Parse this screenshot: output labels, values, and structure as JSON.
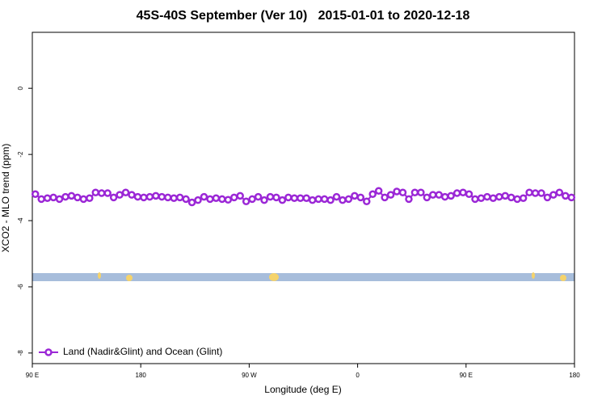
{
  "chart_data": {
    "type": "line",
    "title": "45S-40S September (Ver 10)   2015-01-01 to 2020-12-18",
    "x_label": "Longitude (deg E)",
    "y_label": "XCO2 - MLO trend (ppm)",
    "xlim": [
      90,
      540
    ],
    "ylim": [
      -8.32,
      1.69
    ],
    "xticks": [
      {
        "value": 90,
        "label": "90 E"
      },
      180,
      {
        "value": 270,
        "label": "90 W"
      },
      {
        "value": 360,
        "label": "0"
      },
      {
        "value": 450,
        "label": "90 E"
      },
      {
        "value": 540,
        "label": "180"
      }
    ],
    "yticks": [
      0,
      -2,
      -4,
      -6,
      -8
    ],
    "legend_position": "bottom-left",
    "x": [
      92.5,
      97.5,
      102.5,
      107.5,
      112.5,
      117.5,
      122.5,
      127.5,
      132.5,
      137.5,
      142.5,
      147.5,
      152.5,
      157.5,
      162.5,
      167.5,
      172.5,
      177.5,
      182.5,
      187.5,
      192.5,
      197.5,
      202.5,
      207.5,
      212.5,
      217.5,
      222.5,
      227.5,
      232.5,
      237.5,
      242.5,
      247.5,
      252.5,
      257.5,
      262.5,
      267.5,
      272.5,
      277.5,
      282.5,
      287.5,
      292.5,
      297.5,
      302.5,
      307.5,
      312.5,
      317.5,
      322.5,
      327.5,
      332.5,
      337.5,
      342.5,
      347.5,
      352.5,
      357.5,
      362.5,
      367.5,
      372.5,
      377.5,
      382.5,
      387.5,
      392.5,
      397.5,
      402.5,
      407.5,
      412.5,
      417.5,
      422.5,
      427.5,
      432.5,
      437.5,
      442.5,
      447.5,
      452.5,
      457.5,
      462.5,
      467.5,
      472.5,
      477.5,
      482.5,
      487.5,
      492.5,
      497.5,
      502.5,
      507.5,
      512.5,
      517.5,
      522.5,
      527.5,
      532.5,
      537.5
    ],
    "series": [
      {
        "name": "Land (Nadir&Glint) and Ocean (Glint)",
        "color": "#9b27d6",
        "values": [
          -3.2,
          -3.35,
          -3.32,
          -3.3,
          -3.35,
          -3.28,
          -3.25,
          -3.3,
          -3.35,
          -3.32,
          -3.15,
          -3.17,
          -3.17,
          -3.3,
          -3.22,
          -3.15,
          -3.22,
          -3.28,
          -3.3,
          -3.28,
          -3.25,
          -3.28,
          -3.3,
          -3.32,
          -3.3,
          -3.35,
          -3.45,
          -3.38,
          -3.28,
          -3.35,
          -3.32,
          -3.35,
          -3.37,
          -3.3,
          -3.25,
          -3.42,
          -3.35,
          -3.28,
          -3.38,
          -3.28,
          -3.3,
          -3.38,
          -3.3,
          -3.32,
          -3.32,
          -3.32,
          -3.38,
          -3.35,
          -3.35,
          -3.38,
          -3.28,
          -3.38,
          -3.35,
          -3.25,
          -3.3,
          -3.42,
          -3.2,
          -3.1,
          -3.3,
          -3.22,
          -3.12,
          -3.15,
          -3.35,
          -3.15,
          -3.15,
          -3.3,
          -3.22,
          -3.22,
          -3.28,
          -3.25,
          -3.17,
          -3.15,
          -3.2,
          -3.35,
          -3.32,
          -3.28,
          -3.32,
          -3.28,
          -3.25,
          -3.3,
          -3.35,
          -3.32,
          -3.15,
          -3.17,
          -3.17,
          -3.3,
          -3.22,
          -3.15,
          -3.25,
          -3.3
        ]
      }
    ]
  }
}
